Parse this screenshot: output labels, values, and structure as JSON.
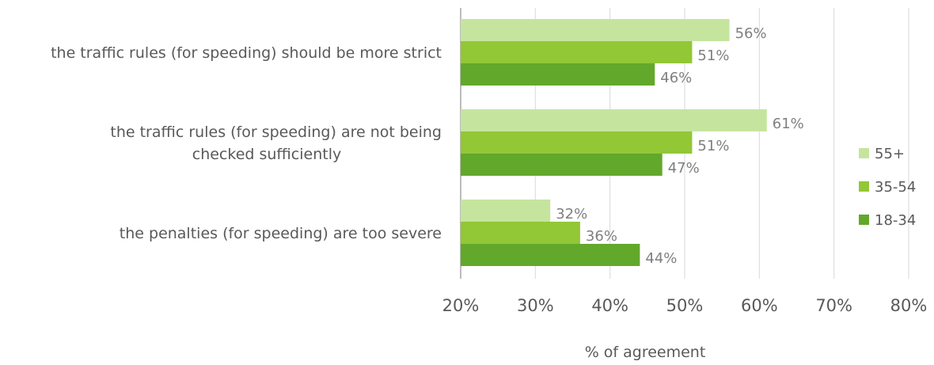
{
  "chart_data": {
    "type": "bar",
    "orientation": "horizontal",
    "categories": [
      [
        "the traffic rules (for speeding) should be more strict"
      ],
      [
        "the traffic rules (for speeding) are not being",
        "checked sufficiently"
      ],
      [
        "the penalties (for speeding) are too severe"
      ]
    ],
    "series": [
      {
        "name": "55+",
        "values": [
          56,
          61,
          32
        ],
        "labels": [
          "56%",
          "61%",
          "32%"
        ],
        "color": "#c5e59e"
      },
      {
        "name": "35-54",
        "values": [
          51,
          51,
          36
        ],
        "labels": [
          "51%",
          "51%",
          "36%"
        ],
        "color": "#92c735"
      },
      {
        "name": "18-34",
        "values": [
          46,
          47,
          44
        ],
        "labels": [
          "46%",
          "47%",
          "44%"
        ],
        "color": "#62a82b"
      }
    ],
    "xlim": [
      20,
      80
    ],
    "xticks": [
      20,
      30,
      40,
      50,
      60,
      70,
      80
    ],
    "tick_labels": [
      "20%",
      "30%",
      "40%",
      "50%",
      "60%",
      "70%",
      "80%"
    ],
    "xlabel": "% of agreement",
    "ylabel": "",
    "title": "",
    "grid": true,
    "legend_position": "right"
  }
}
